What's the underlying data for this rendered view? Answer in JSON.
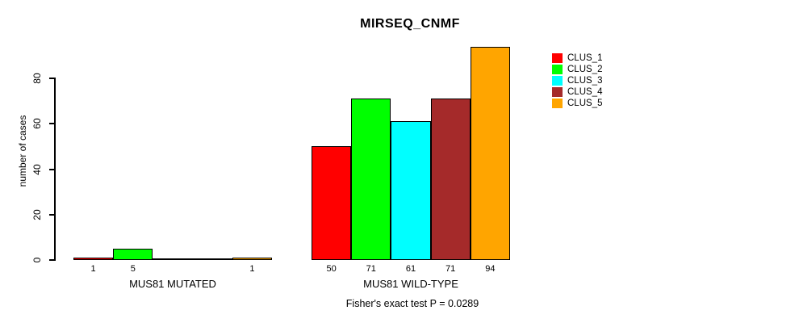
{
  "chart_data": {
    "type": "bar",
    "title": "MIRSEQ_CNMF",
    "subtitle": "Fisher's exact test P = 0.0289",
    "ylabel": "number of cases",
    "xlabel": "",
    "y_ticks": [
      0,
      20,
      40,
      60,
      80
    ],
    "ylim": [
      0,
      94
    ],
    "grid": false,
    "legend_position": "right-outside-top",
    "bar_border_color": "#000000",
    "background_color": "#ffffff",
    "categories": [
      "MUS81 MUTATED",
      "MUS81 WILD-TYPE"
    ],
    "series": [
      {
        "name": "CLUS_1",
        "color": "#ff0000",
        "values": [
          1,
          50
        ]
      },
      {
        "name": "CLUS_2",
        "color": "#00ff00",
        "values": [
          5,
          71
        ]
      },
      {
        "name": "CLUS_3",
        "color": "#00ffff",
        "values": [
          0,
          61
        ]
      },
      {
        "name": "CLUS_4",
        "color": "#a52a2a",
        "values": [
          0,
          71
        ]
      },
      {
        "name": "CLUS_5",
        "color": "#ffa500",
        "values": [
          1,
          94
        ]
      }
    ],
    "bar_value_labels": {
      "MUS81 MUTATED": [
        "1",
        "5",
        "",
        "",
        "1"
      ],
      "MUS81 WILD-TYPE": [
        "50",
        "71",
        "61",
        "71",
        "94"
      ]
    }
  }
}
